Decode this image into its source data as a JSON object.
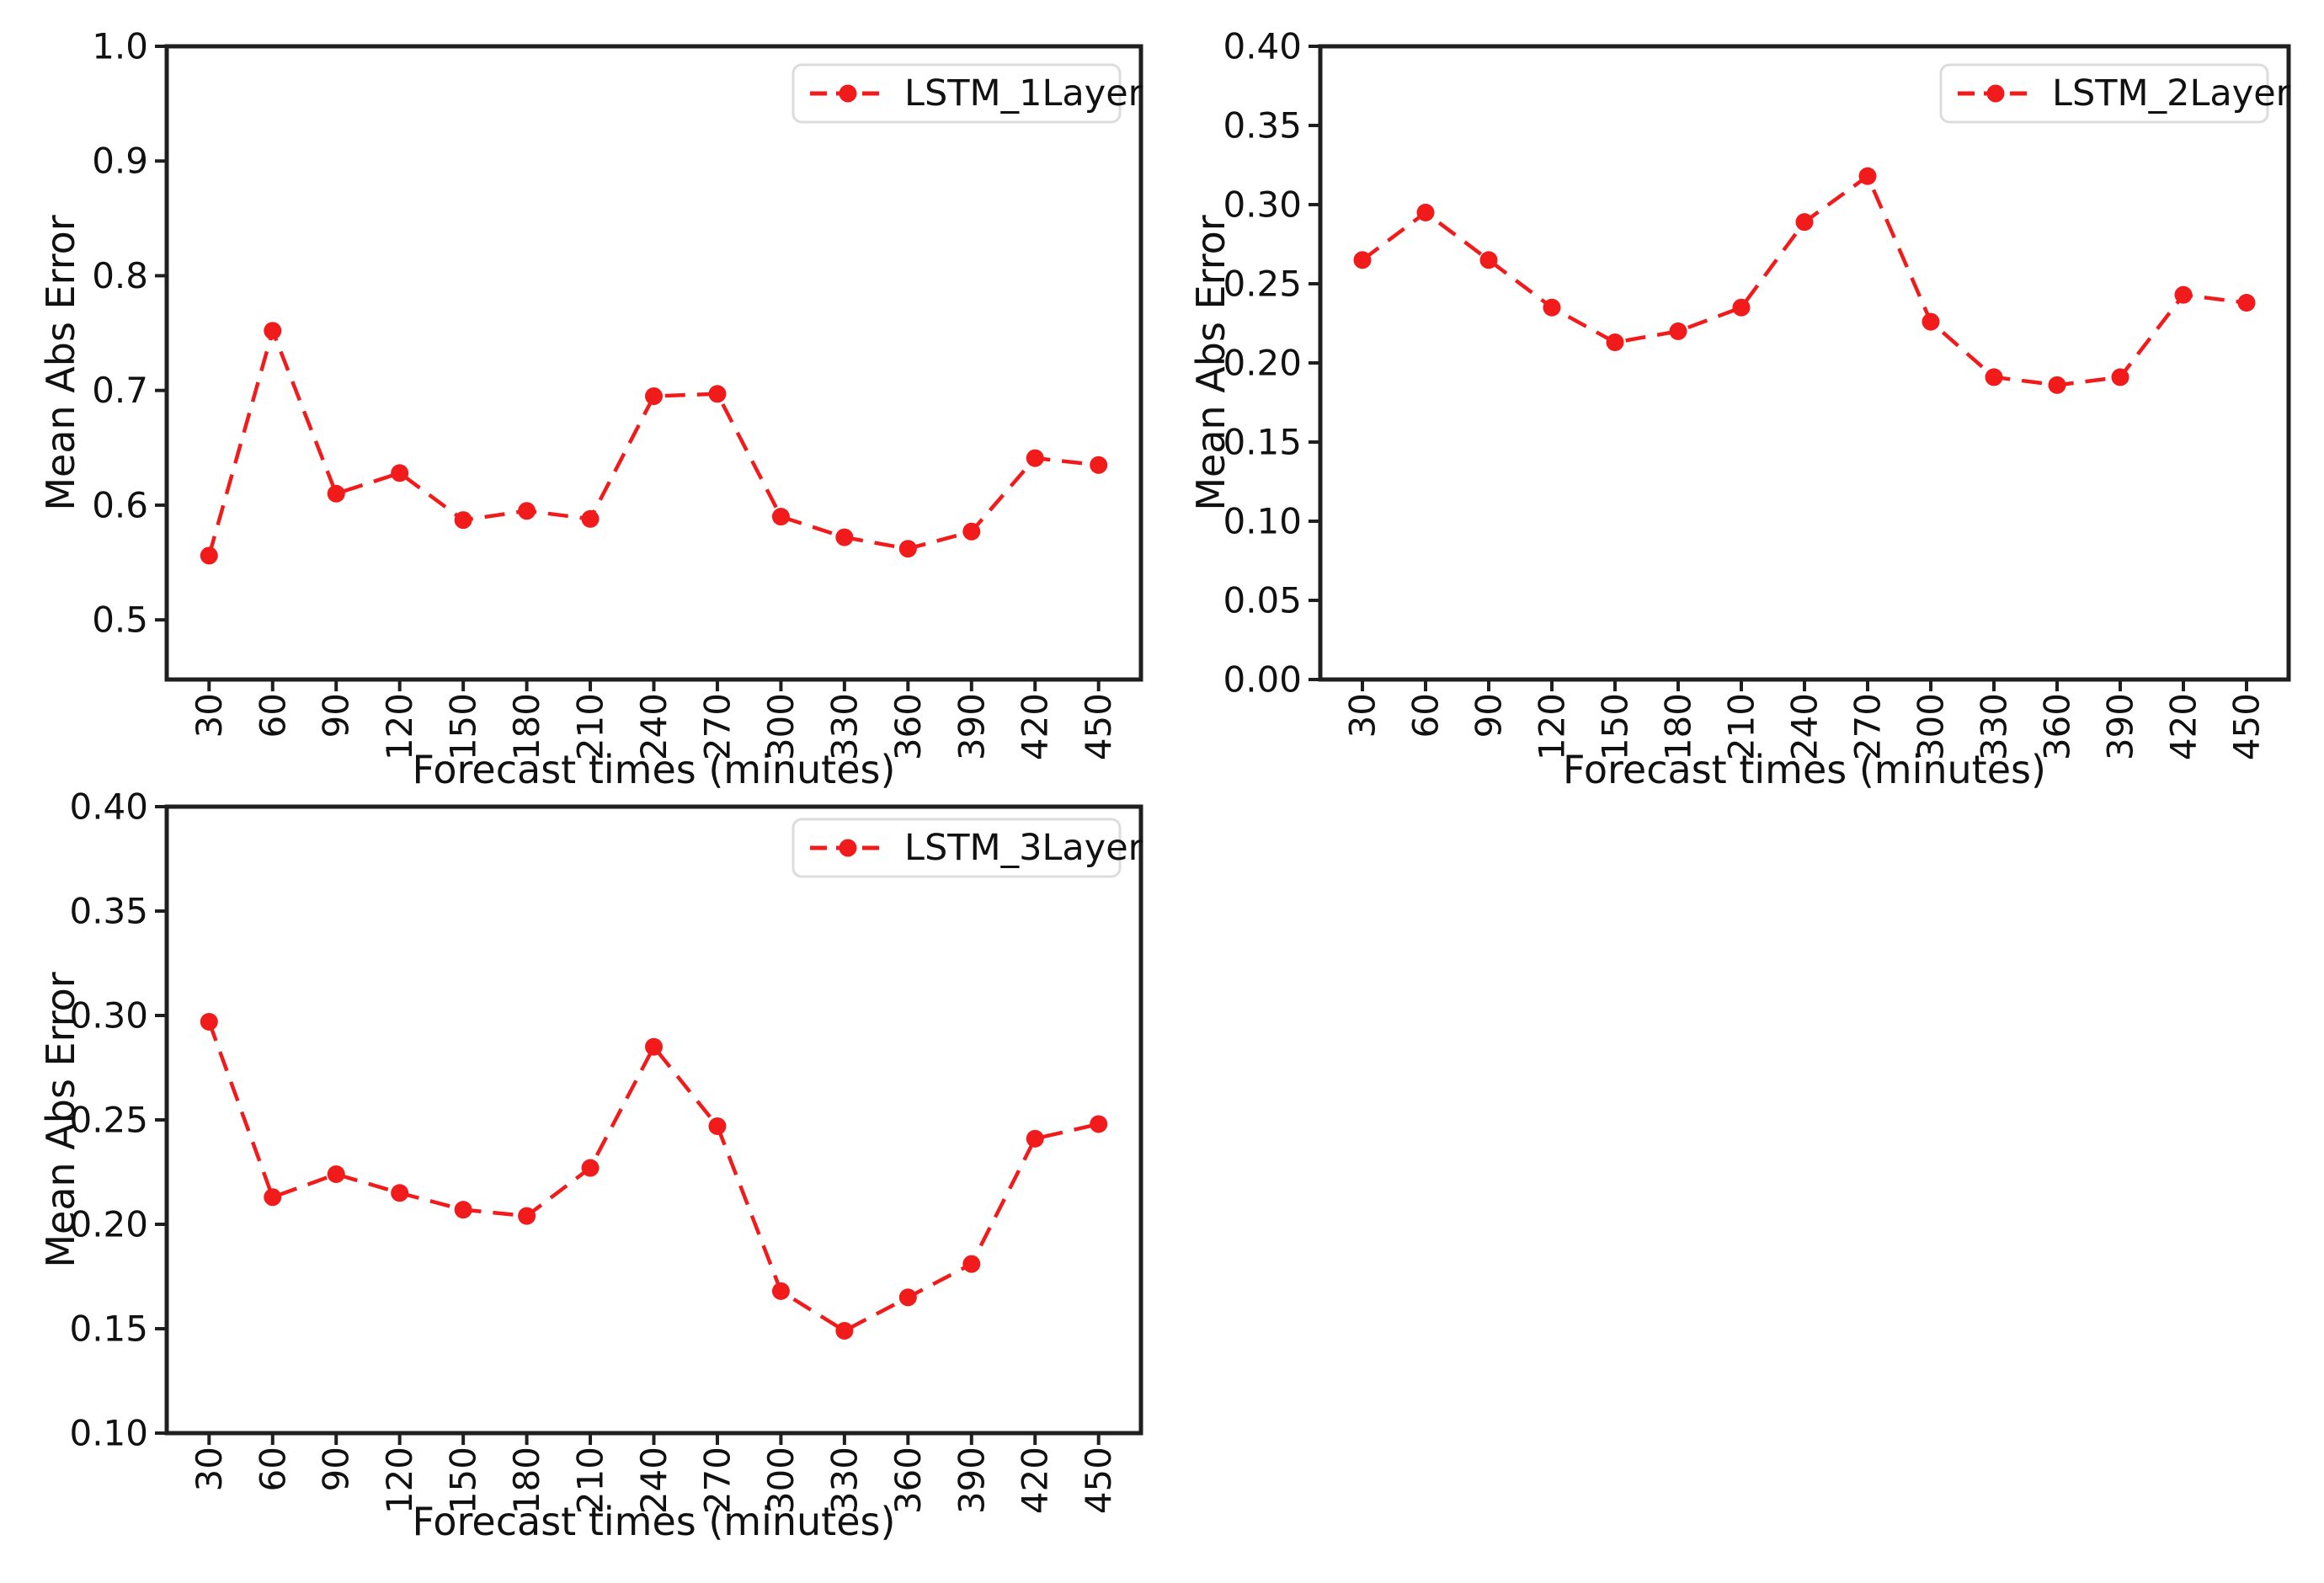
{
  "figure": {
    "background": "#ffffff",
    "axis_color": "#1f1f1f",
    "text_color": "#111111",
    "series_color": "#f21b1b",
    "legend_border_color": "#dcdcdc"
  },
  "chart_data": [
    {
      "type": "line",
      "legend": "LSTM_1Layer",
      "xlabel": "Forecast times (minutes)",
      "ylabel": "Mean Abs Error",
      "x": [
        30,
        60,
        90,
        120,
        150,
        180,
        210,
        240,
        270,
        300,
        330,
        360,
        390,
        420,
        450
      ],
      "x_tick_labels": [
        "30",
        "60",
        "90",
        "120",
        "150",
        "180",
        "210",
        "240",
        "270",
        "300",
        "330",
        "360",
        "390",
        "420",
        "450"
      ],
      "values": [
        0.556,
        0.752,
        0.61,
        0.628,
        0.587,
        0.595,
        0.588,
        0.695,
        0.697,
        0.59,
        0.572,
        0.562,
        0.577,
        0.641,
        0.635
      ],
      "xlim": [
        10,
        470
      ],
      "ylim": [
        0.448,
        1.0
      ],
      "ytick_values": [
        0.5,
        0.6,
        0.7,
        0.8,
        0.9,
        1.0
      ],
      "ytick_labels": [
        "0.5",
        "0.6",
        "0.7",
        "0.8",
        "0.9",
        "1.0"
      ],
      "line_style": "dashed",
      "marker": "circle",
      "color": "#f21b1b",
      "legend_position": "upper right",
      "grid": false
    },
    {
      "type": "line",
      "legend": "LSTM_2Layer",
      "xlabel": "Forecast times (minutes)",
      "ylabel": "Mean Abs Error",
      "x": [
        30,
        60,
        90,
        120,
        150,
        180,
        210,
        240,
        270,
        300,
        330,
        360,
        390,
        420,
        450
      ],
      "x_tick_labels": [
        "30",
        "60",
        "90",
        "120",
        "150",
        "180",
        "210",
        "240",
        "270",
        "300",
        "330",
        "360",
        "390",
        "420",
        "450"
      ],
      "values": [
        0.265,
        0.295,
        0.265,
        0.235,
        0.213,
        0.22,
        0.235,
        0.289,
        0.318,
        0.226,
        0.191,
        0.186,
        0.191,
        0.243,
        0.238
      ],
      "xlim": [
        10,
        470
      ],
      "ylim": [
        0.0,
        0.4
      ],
      "ytick_values": [
        0.0,
        0.05,
        0.1,
        0.15,
        0.2,
        0.25,
        0.3,
        0.35,
        0.4
      ],
      "ytick_labels": [
        "0.00",
        "0.05",
        "0.10",
        "0.15",
        "0.20",
        "0.25",
        "0.30",
        "0.35",
        "0.40"
      ],
      "line_style": "dashed",
      "marker": "circle",
      "color": "#f21b1b",
      "legend_position": "upper right",
      "grid": false
    },
    {
      "type": "line",
      "legend": "LSTM_3Layer",
      "xlabel": "Forecast times (minutes)",
      "ylabel": "Mean Abs Error",
      "x": [
        30,
        60,
        90,
        120,
        150,
        180,
        210,
        240,
        270,
        300,
        330,
        360,
        390,
        420,
        450
      ],
      "x_tick_labels": [
        "30",
        "60",
        "90",
        "120",
        "150",
        "180",
        "210",
        "240",
        "270",
        "300",
        "330",
        "360",
        "390",
        "420",
        "450"
      ],
      "values": [
        0.297,
        0.213,
        0.224,
        0.215,
        0.207,
        0.204,
        0.227,
        0.285,
        0.247,
        0.168,
        0.149,
        0.165,
        0.181,
        0.241,
        0.248
      ],
      "xlim": [
        10,
        470
      ],
      "ylim": [
        0.1,
        0.4
      ],
      "ytick_values": [
        0.1,
        0.15,
        0.2,
        0.25,
        0.3,
        0.35,
        0.4
      ],
      "ytick_labels": [
        "0.10",
        "0.15",
        "0.20",
        "0.25",
        "0.30",
        "0.35",
        "0.40"
      ],
      "line_style": "dashed",
      "marker": "circle",
      "color": "#f21b1b",
      "legend_position": "upper right",
      "grid": false
    }
  ]
}
